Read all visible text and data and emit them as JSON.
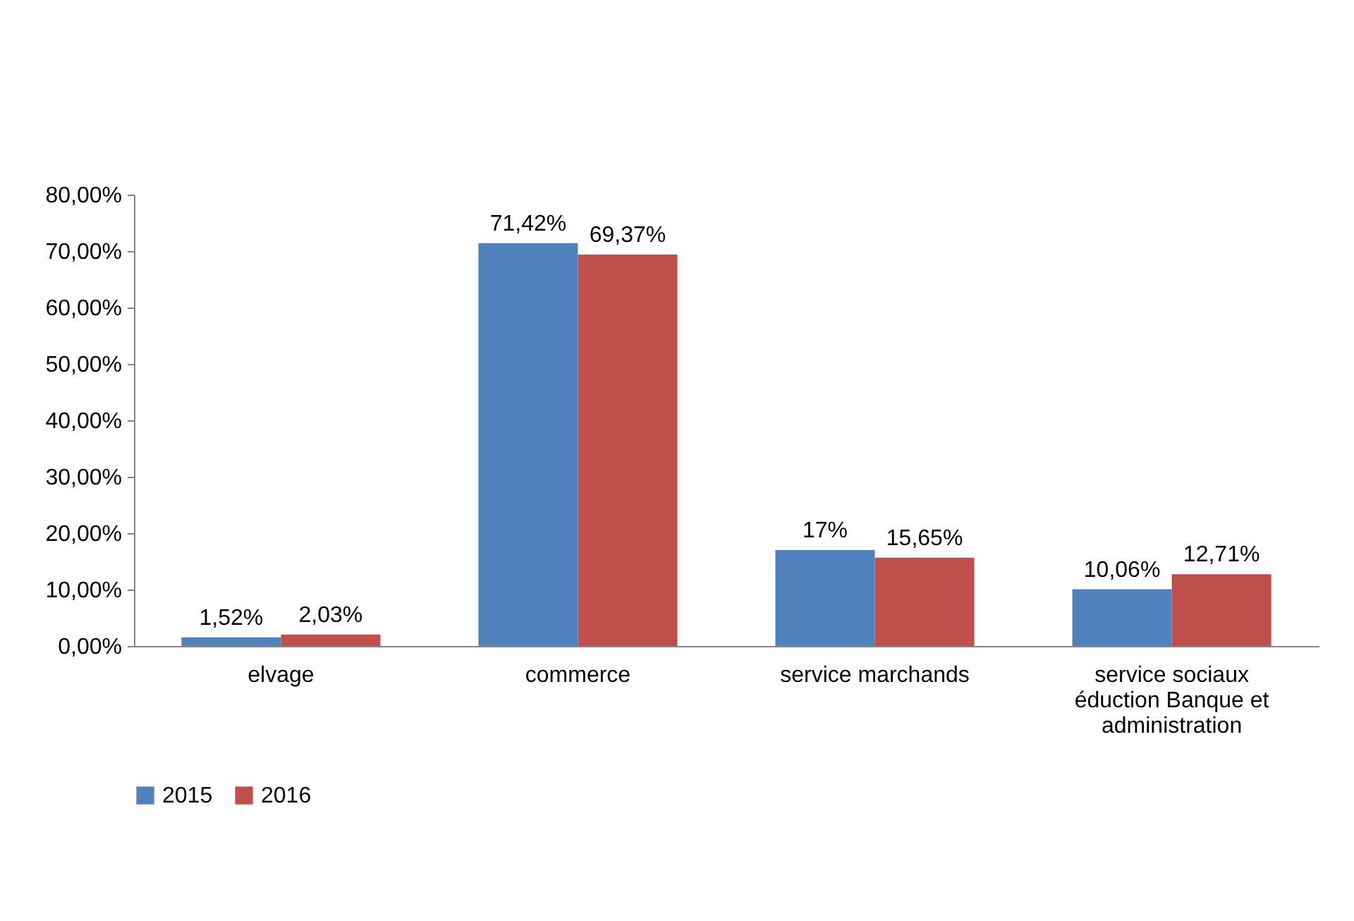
{
  "chart_data": {
    "type": "bar",
    "categories": [
      "elvage",
      "commerce",
      "service marchands",
      "service sociaux éduction Banque et administration"
    ],
    "series": [
      {
        "name": "2015",
        "color": "#4f81bd",
        "values": [
          1.52,
          71.42,
          17,
          10.06
        ],
        "value_labels": [
          "1,52%",
          "71,42%",
          "17%",
          "10,06%"
        ]
      },
      {
        "name": "2016",
        "color": "#c0504d",
        "values": [
          2.03,
          69.37,
          15.65,
          12.71
        ],
        "value_labels": [
          "2,03%",
          "69,37%",
          "15,65%",
          "12,71%"
        ]
      }
    ],
    "ylim": [
      0,
      80
    ],
    "yticks": [
      {
        "value": 0,
        "label": "0,00%"
      },
      {
        "value": 10,
        "label": "10,00%"
      },
      {
        "value": 20,
        "label": "20,00%"
      },
      {
        "value": 30,
        "label": "30,00%"
      },
      {
        "value": 40,
        "label": "40,00%"
      },
      {
        "value": 50,
        "label": "50,00%"
      },
      {
        "value": 60,
        "label": "60,00%"
      },
      {
        "value": 70,
        "label": "70,00%"
      },
      {
        "value": 80,
        "label": "80,00%"
      }
    ],
    "grid": false,
    "legend": "bottom"
  }
}
